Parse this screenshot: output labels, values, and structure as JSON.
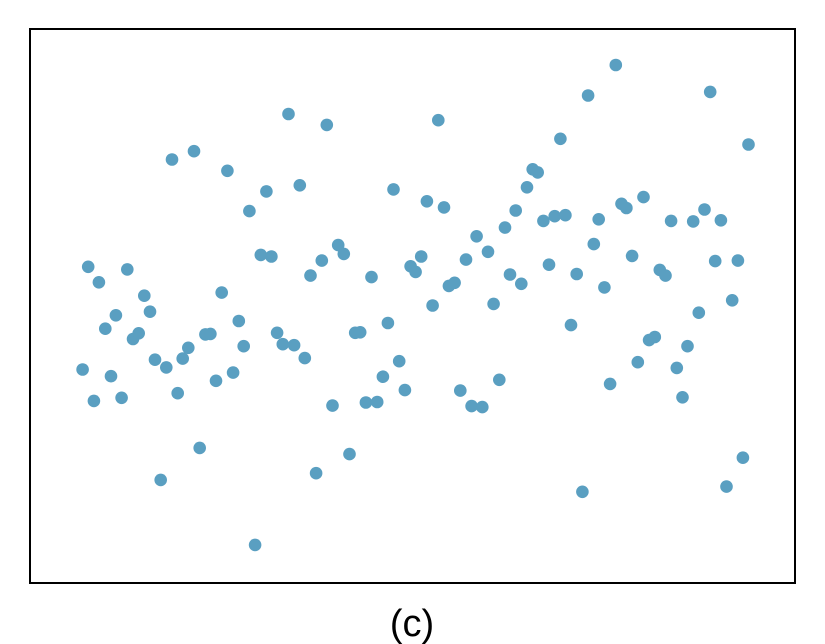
{
  "chart_data": {
    "type": "scatter",
    "caption": "(c)",
    "xlabel": "",
    "ylabel": "",
    "axes_visible": false,
    "grid": false,
    "legend": "none",
    "xlim": [
      0,
      100
    ],
    "ylim": [
      0,
      100
    ],
    "marker_color": "#5a9fc1",
    "points": [
      [
        3.6,
        37.7
      ],
      [
        4.4,
        57.6
      ],
      [
        5.2,
        31.6
      ],
      [
        5.9,
        54.6
      ],
      [
        6.8,
        45.6
      ],
      [
        7.6,
        36.4
      ],
      [
        8.3,
        48.2
      ],
      [
        9.1,
        32.2
      ],
      [
        9.9,
        57.1
      ],
      [
        10.7,
        43.6
      ],
      [
        11.5,
        44.7
      ],
      [
        12.3,
        52.0
      ],
      [
        13.1,
        48.9
      ],
      [
        13.8,
        39.6
      ],
      [
        14.6,
        16.3
      ],
      [
        15.4,
        38.1
      ],
      [
        16.2,
        78.4
      ],
      [
        17.0,
        33.1
      ],
      [
        17.7,
        39.8
      ],
      [
        18.5,
        41.9
      ],
      [
        19.3,
        80.0
      ],
      [
        20.1,
        22.5
      ],
      [
        20.9,
        44.5
      ],
      [
        21.6,
        44.6
      ],
      [
        22.4,
        35.5
      ],
      [
        23.2,
        52.6
      ],
      [
        24.0,
        76.2
      ],
      [
        24.8,
        37.1
      ],
      [
        25.6,
        47.1
      ],
      [
        26.3,
        42.2
      ],
      [
        27.1,
        68.4
      ],
      [
        27.9,
        3.7
      ],
      [
        28.7,
        59.9
      ],
      [
        29.5,
        72.2
      ],
      [
        30.2,
        59.6
      ],
      [
        31.0,
        44.8
      ],
      [
        31.8,
        42.6
      ],
      [
        32.6,
        87.2
      ],
      [
        33.4,
        42.4
      ],
      [
        34.2,
        73.4
      ],
      [
        34.9,
        39.9
      ],
      [
        35.7,
        55.9
      ],
      [
        36.5,
        17.6
      ],
      [
        37.3,
        58.8
      ],
      [
        38.0,
        85.1
      ],
      [
        38.8,
        30.7
      ],
      [
        39.6,
        61.8
      ],
      [
        40.4,
        60.1
      ],
      [
        41.2,
        21.3
      ],
      [
        42.0,
        44.8
      ],
      [
        42.7,
        44.9
      ],
      [
        43.5,
        31.3
      ],
      [
        44.3,
        55.6
      ],
      [
        45.1,
        31.4
      ],
      [
        45.9,
        36.3
      ],
      [
        46.6,
        46.7
      ],
      [
        47.4,
        72.6
      ],
      [
        48.2,
        39.3
      ],
      [
        49.0,
        33.7
      ],
      [
        49.8,
        57.7
      ],
      [
        50.5,
        56.6
      ],
      [
        51.3,
        59.6
      ],
      [
        52.1,
        70.3
      ],
      [
        52.9,
        50.1
      ],
      [
        53.7,
        86.0
      ],
      [
        54.5,
        69.1
      ],
      [
        55.2,
        53.9
      ],
      [
        56.0,
        54.5
      ],
      [
        56.8,
        33.6
      ],
      [
        57.6,
        59.0
      ],
      [
        58.4,
        30.6
      ],
      [
        59.1,
        63.5
      ],
      [
        59.9,
        30.4
      ],
      [
        60.7,
        60.5
      ],
      [
        61.5,
        50.4
      ],
      [
        62.3,
        35.7
      ],
      [
        63.1,
        65.2
      ],
      [
        63.8,
        56.1
      ],
      [
        64.6,
        68.5
      ],
      [
        65.4,
        54.3
      ],
      [
        66.2,
        73.0
      ],
      [
        67.0,
        76.5
      ],
      [
        67.7,
        75.9
      ],
      [
        68.5,
        66.5
      ],
      [
        69.3,
        58.0
      ],
      [
        70.1,
        67.4
      ],
      [
        70.9,
        82.4
      ],
      [
        71.6,
        67.6
      ],
      [
        72.4,
        46.3
      ],
      [
        73.2,
        56.2
      ],
      [
        74.0,
        14.0
      ],
      [
        74.8,
        90.8
      ],
      [
        75.6,
        62.0
      ],
      [
        76.3,
        66.8
      ],
      [
        77.1,
        53.6
      ],
      [
        77.9,
        34.9
      ],
      [
        78.7,
        96.7
      ],
      [
        79.5,
        69.8
      ],
      [
        80.2,
        69.0
      ],
      [
        81.0,
        59.7
      ],
      [
        81.8,
        39.1
      ],
      [
        82.6,
        71.1
      ],
      [
        83.4,
        43.4
      ],
      [
        84.2,
        44.0
      ],
      [
        84.9,
        57.0
      ],
      [
        85.7,
        55.9
      ],
      [
        86.5,
        66.5
      ],
      [
        87.3,
        38.0
      ],
      [
        88.1,
        32.3
      ],
      [
        88.8,
        42.2
      ],
      [
        89.6,
        66.4
      ],
      [
        90.4,
        48.7
      ],
      [
        91.2,
        68.7
      ],
      [
        92.0,
        91.5
      ],
      [
        92.7,
        58.7
      ],
      [
        93.5,
        66.6
      ],
      [
        94.3,
        15.0
      ],
      [
        95.1,
        51.1
      ],
      [
        95.9,
        58.8
      ],
      [
        96.6,
        20.6
      ],
      [
        97.4,
        81.3
      ]
    ]
  }
}
